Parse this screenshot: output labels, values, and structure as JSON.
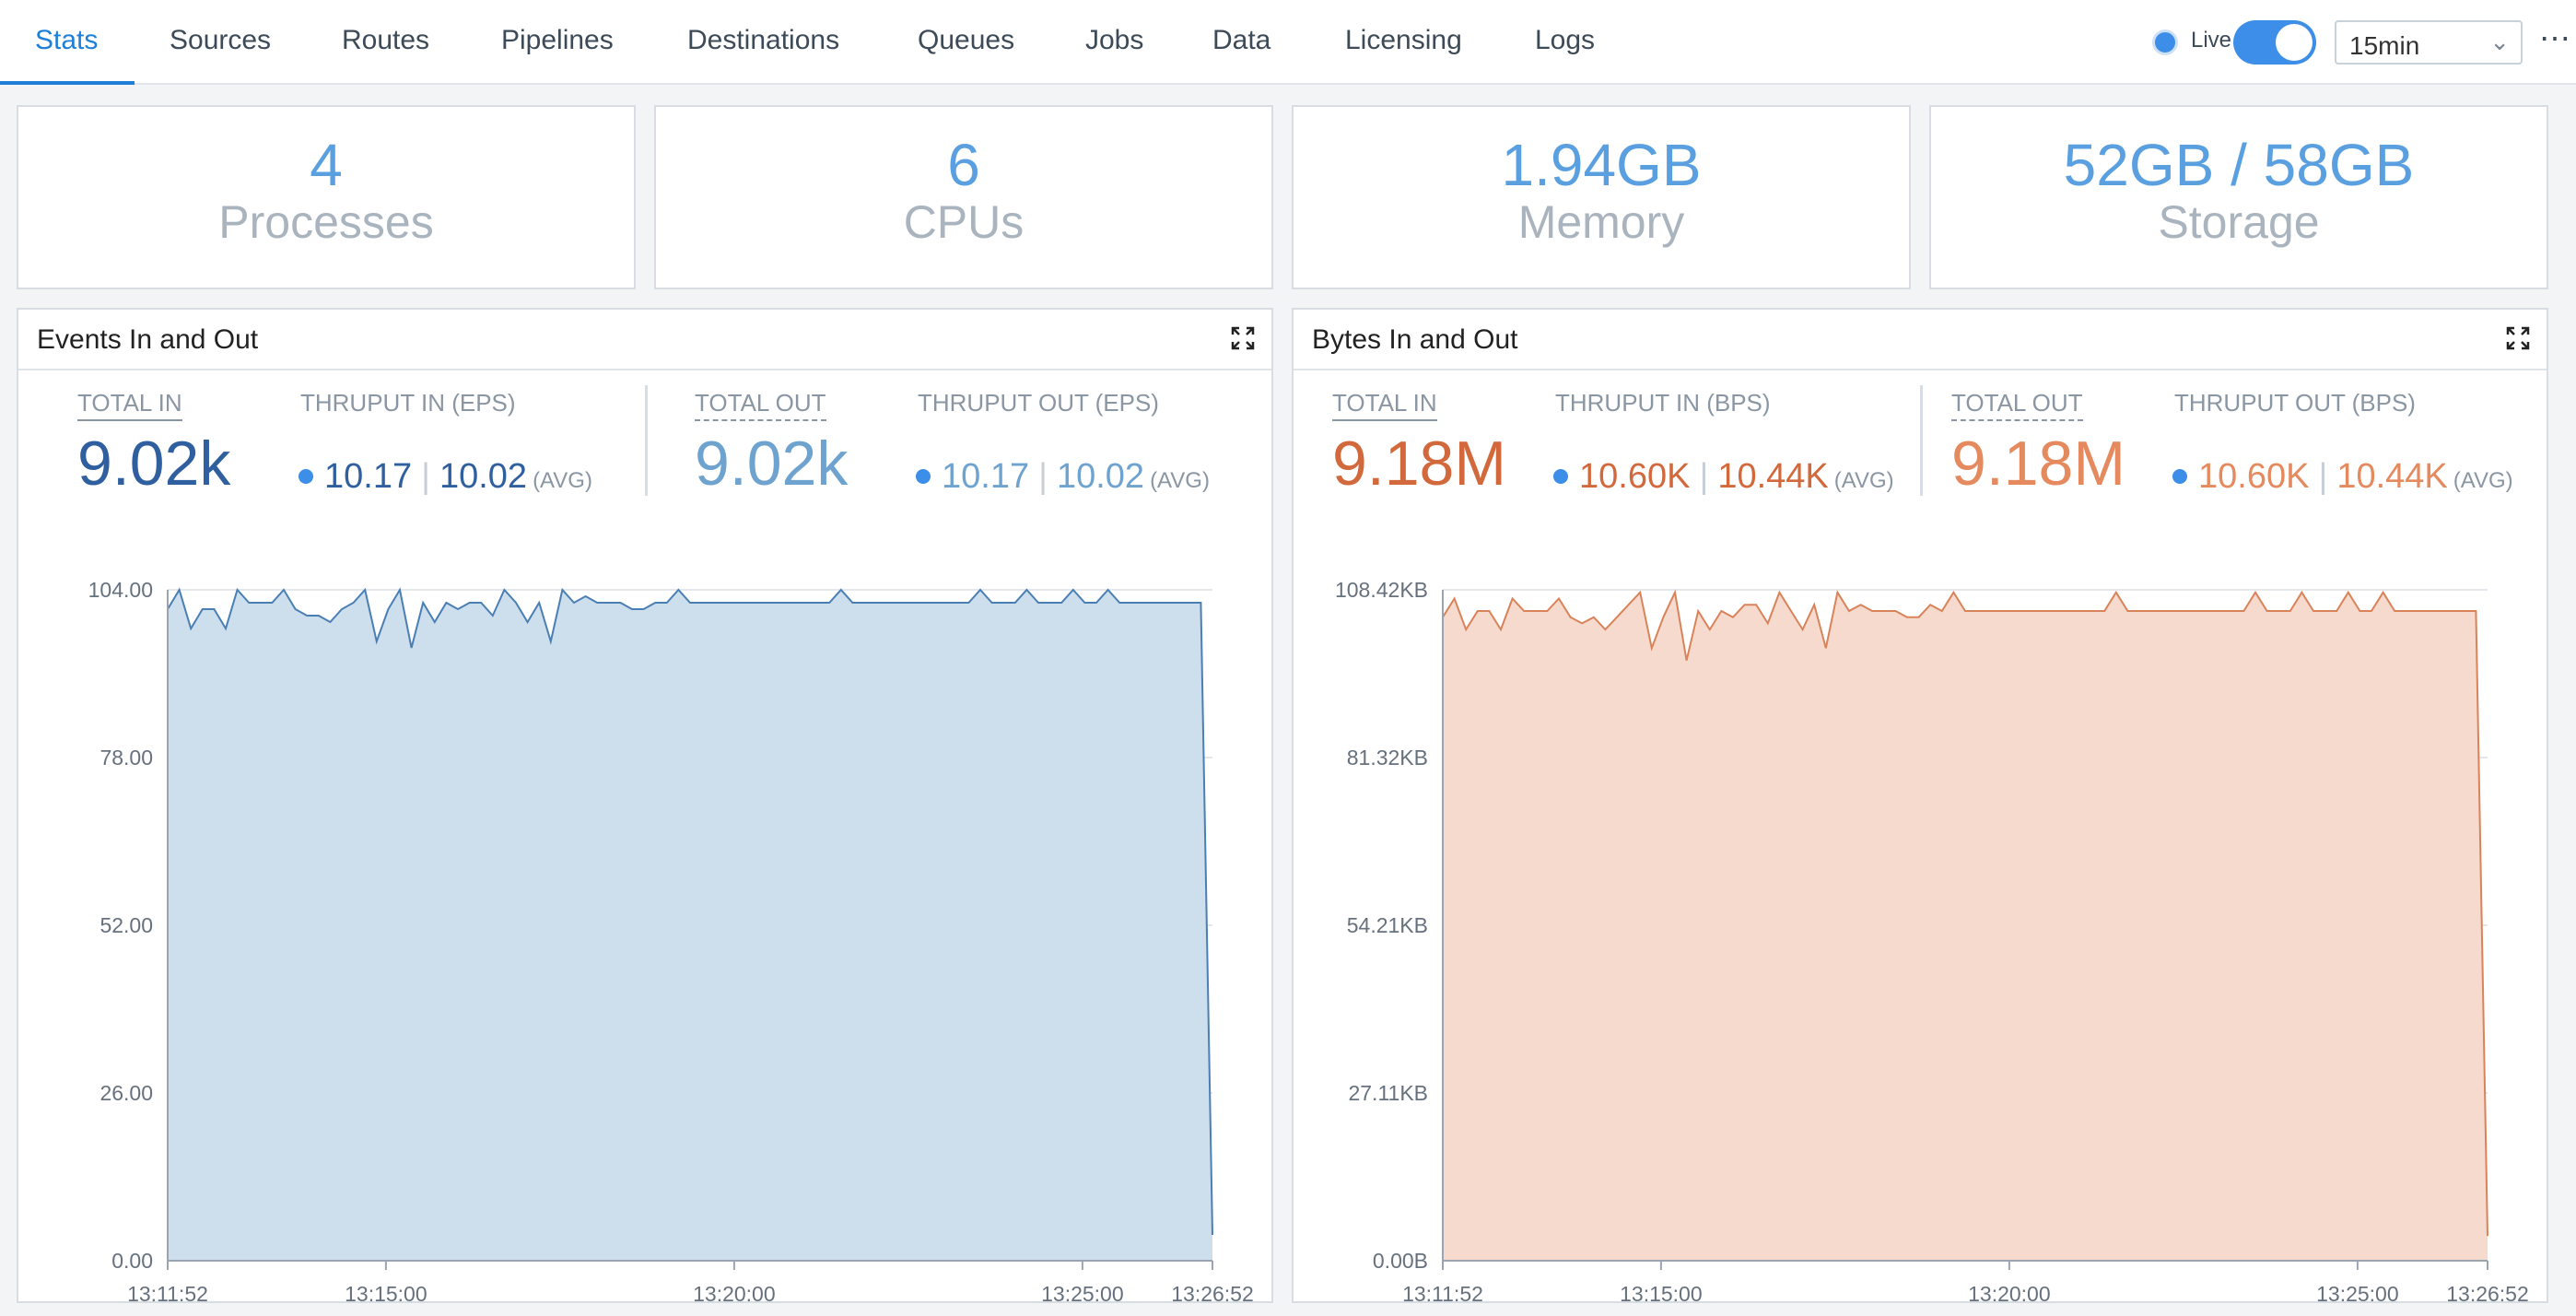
{
  "nav": {
    "tabs": [
      {
        "label": "Stats"
      },
      {
        "label": "Sources"
      },
      {
        "label": "Routes"
      },
      {
        "label": "Pipelines"
      },
      {
        "label": "Destinations"
      },
      {
        "label": "Queues"
      },
      {
        "label": "Jobs"
      },
      {
        "label": "Data"
      },
      {
        "label": "Licensing"
      },
      {
        "label": "Logs"
      }
    ],
    "active_tab": "Stats",
    "live_label": "Live",
    "live_enabled": true,
    "time_range": "15min",
    "more_label": "⋯"
  },
  "cards": [
    {
      "value": "4",
      "label": "Processes"
    },
    {
      "value": "6",
      "label": "CPUs"
    },
    {
      "value": "1.94GB",
      "label": "Memory"
    },
    {
      "value": "52GB / 58GB",
      "label": "Storage"
    }
  ],
  "events": {
    "title": "Events In and Out",
    "total_in_label": "TOTAL IN",
    "total_in": "9.02k",
    "thruput_in_label": "THRUPUT IN (EPS)",
    "thruput_in": "10.17",
    "thruput_in_avg": "10.02",
    "avg_label": "(AVG)",
    "total_out_label": "TOTAL OUT",
    "total_out": "9.02k",
    "thruput_out_label": "THRUPUT OUT (EPS)",
    "thruput_out": "10.17",
    "thruput_out_avg": "10.02",
    "color_in": "#2f5f9e",
    "color_out": "#6ea3cf"
  },
  "bytes": {
    "title": "Bytes In and Out",
    "total_in_label": "TOTAL IN",
    "total_in": "9.18M",
    "thruput_in_label": "THRUPUT IN (BPS)",
    "thruput_in": "10.60K",
    "thruput_in_avg": "10.44K",
    "avg_label": "(AVG)",
    "total_out_label": "TOTAL OUT",
    "total_out": "9.18M",
    "thruput_out_label": "THRUPUT OUT (BPS)",
    "thruput_out": "10.60K",
    "thruput_out_avg": "10.44K",
    "color_in": "#d2693c",
    "color_out": "#e48a5e"
  },
  "chart_data": [
    {
      "type": "area",
      "title": "Events In and Out",
      "color": "#4a7fb5",
      "fill": "#cddeec",
      "ylim": [
        0,
        104
      ],
      "yticks": [
        "0.00",
        "26.00",
        "52.00",
        "78.00",
        "104.00"
      ],
      "ytick_values": [
        0,
        26,
        52,
        78,
        104
      ],
      "xlim": [
        0,
        900
      ],
      "xticks": [
        "13:11:52",
        "13:15:00",
        "13:20:00",
        "13:25:00",
        "13:26:52"
      ],
      "xtick_values": [
        0,
        188,
        488,
        788,
        900
      ],
      "grid": true,
      "series": [
        {
          "x": [
            0,
            10,
            20,
            30,
            40,
            50,
            60,
            70,
            80,
            90,
            100,
            110,
            120,
            130,
            140,
            150,
            160,
            170,
            180,
            190,
            200,
            210,
            220,
            230,
            240,
            250,
            260,
            270,
            280,
            290,
            300,
            310,
            320,
            330,
            340,
            350,
            360,
            370,
            380,
            390,
            400,
            410,
            420,
            430,
            440,
            450,
            460,
            470,
            480,
            490,
            500,
            510,
            520,
            530,
            540,
            550,
            560,
            570,
            580,
            590,
            600,
            610,
            620,
            630,
            640,
            650,
            660,
            670,
            680,
            690,
            700,
            710,
            720,
            730,
            740,
            750,
            760,
            770,
            780,
            790,
            800,
            810,
            820,
            830,
            840,
            850,
            860,
            870,
            880,
            890,
            900
          ],
          "y": [
            101,
            104,
            98,
            101,
            101,
            98,
            104,
            102,
            102,
            102,
            104,
            101,
            100,
            100,
            99,
            101,
            102,
            104,
            96,
            101,
            104,
            95,
            102,
            99,
            102,
            101,
            102,
            102,
            100,
            104,
            102,
            99,
            102,
            96,
            104,
            102,
            103,
            102,
            102,
            102,
            101,
            101,
            102,
            102,
            104,
            102,
            102,
            102,
            102,
            102,
            102,
            102,
            102,
            102,
            102,
            102,
            102,
            102,
            104,
            102,
            102,
            102,
            102,
            102,
            102,
            102,
            102,
            102,
            102,
            102,
            104,
            102,
            102,
            102,
            104,
            102,
            102,
            102,
            104,
            102,
            102,
            104,
            102,
            102,
            102,
            102,
            102,
            102,
            102,
            102,
            4
          ]
        }
      ]
    },
    {
      "type": "area",
      "title": "Bytes In and Out",
      "color": "#d9835a",
      "fill": "#f6dacd",
      "ylim": [
        0,
        108.42
      ],
      "yticks": [
        "0.00B",
        "27.11KB",
        "54.21KB",
        "81.32KB",
        "108.42KB"
      ],
      "ytick_values": [
        0,
        27.11,
        54.21,
        81.32,
        108.42
      ],
      "xlim": [
        0,
        900
      ],
      "xticks": [
        "13:11:52",
        "13:15:00",
        "13:20:00",
        "13:25:00",
        "13:26:52"
      ],
      "xtick_values": [
        0,
        188,
        488,
        788,
        900
      ],
      "grid": true,
      "series": [
        {
          "x": [
            0,
            10,
            20,
            30,
            40,
            50,
            60,
            70,
            80,
            90,
            100,
            110,
            120,
            130,
            140,
            150,
            160,
            170,
            180,
            190,
            200,
            210,
            220,
            230,
            240,
            250,
            260,
            270,
            280,
            290,
            300,
            310,
            320,
            330,
            340,
            350,
            360,
            370,
            380,
            390,
            400,
            410,
            420,
            430,
            440,
            450,
            460,
            470,
            480,
            490,
            500,
            510,
            520,
            530,
            540,
            550,
            560,
            570,
            580,
            590,
            600,
            610,
            620,
            630,
            640,
            650,
            660,
            670,
            680,
            690,
            700,
            710,
            720,
            730,
            740,
            750,
            760,
            770,
            780,
            790,
            800,
            810,
            820,
            830,
            840,
            850,
            860,
            870,
            880,
            890,
            900
          ],
          "y": [
            104,
            107,
            102,
            105,
            105,
            102,
            107,
            105,
            105,
            105,
            107,
            104,
            103,
            104,
            102,
            104,
            106,
            108,
            99,
            104,
            108,
            97,
            105,
            102,
            105,
            104,
            106,
            106,
            103,
            108,
            105,
            102,
            106,
            99,
            108,
            105,
            106,
            105,
            105,
            105,
            104,
            104,
            106,
            105,
            108,
            105,
            105,
            105,
            105,
            105,
            105,
            105,
            105,
            105,
            105,
            105,
            105,
            105,
            108,
            105,
            105,
            105,
            105,
            105,
            105,
            105,
            105,
            105,
            105,
            105,
            108,
            105,
            105,
            105,
            108,
            105,
            105,
            105,
            108,
            105,
            105,
            108,
            105,
            105,
            105,
            105,
            105,
            105,
            105,
            105,
            4
          ]
        }
      ]
    }
  ]
}
